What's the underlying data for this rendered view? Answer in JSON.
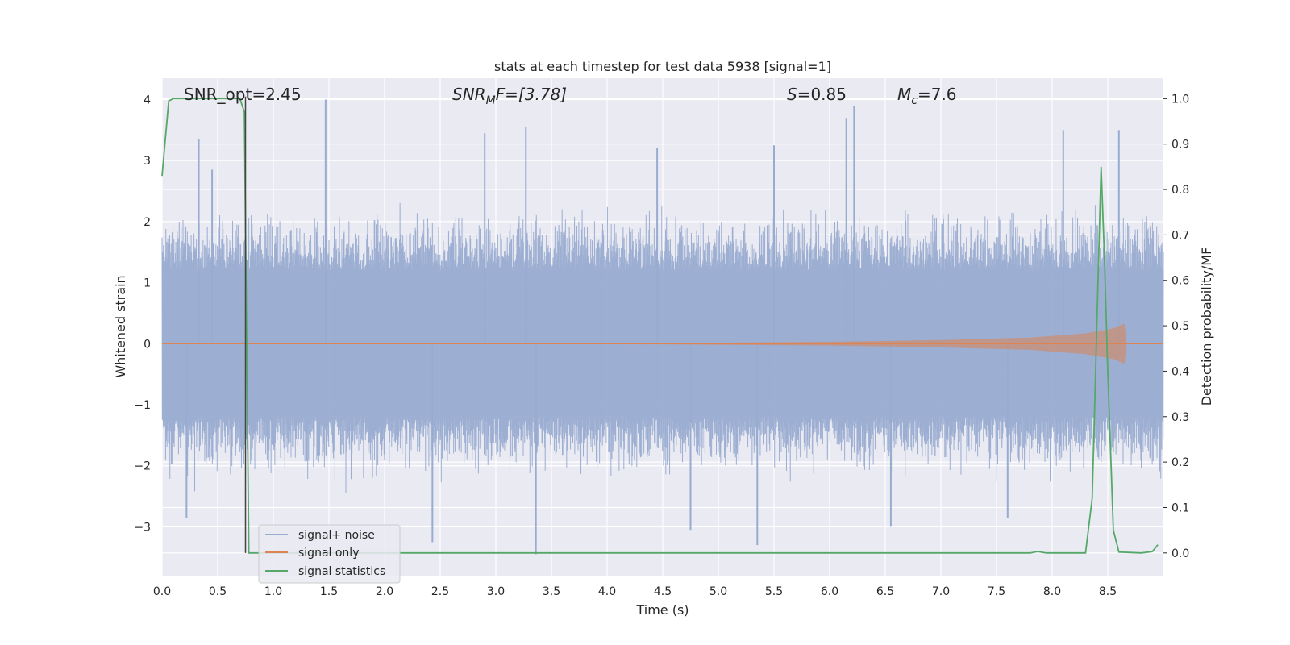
{
  "chart_data": {
    "type": "line",
    "title": "stats at each timestep for test data 5938 [signal=1]",
    "xlabel": "Time (s)",
    "ylabel_left": "Whitened strain",
    "ylabel_right": "Detection probability/MF",
    "xlim": [
      0.0,
      9.0
    ],
    "ylim_left": [
      -3.8,
      4.35
    ],
    "ylim_right": [
      -0.05,
      1.045
    ],
    "xticks": [
      0.0,
      0.5,
      1.0,
      1.5,
      2.0,
      2.5,
      3.0,
      3.5,
      4.0,
      4.5,
      5.0,
      5.5,
      6.0,
      6.5,
      7.0,
      7.5,
      8.0,
      8.5
    ],
    "xtick_labels": [
      "0.0",
      "0.5",
      "1.0",
      "1.5",
      "2.0",
      "2.5",
      "3.0",
      "3.5",
      "4.0",
      "4.5",
      "5.0",
      "5.5",
      "6.0",
      "6.5",
      "7.0",
      "7.5",
      "8.0",
      "8.5"
    ],
    "yticks_left": [
      -3,
      -2,
      -1,
      0,
      1,
      2,
      3,
      4
    ],
    "ytick_labels_left": [
      "−3",
      "−2",
      "−1",
      "0",
      "1",
      "2",
      "3",
      "4"
    ],
    "yticks_right": [
      0.0,
      0.1,
      0.2,
      0.3,
      0.4,
      0.5,
      0.6,
      0.7,
      0.8,
      0.9,
      1.0
    ],
    "ytick_labels_right": [
      "0.0",
      "0.1",
      "0.2",
      "0.3",
      "0.4",
      "0.5",
      "0.6",
      "0.7",
      "0.8",
      "0.9",
      "1.0"
    ],
    "grid": true,
    "legend_position": "lower-left",
    "annotations": {
      "snr_opt": "SNR_opt=2.45",
      "snr_mf_name": "SNR",
      "snr_mf_sub": "M",
      "snr_mf_rest": "F=[3.78]",
      "s_name": "S",
      "s_rest": "=0.85",
      "mc_name": "M",
      "mc_sub": "c",
      "mc_rest": "=7.6"
    },
    "vertical_marker_x": 0.75,
    "series": [
      {
        "name": "signal+ noise",
        "axis": "left",
        "color": "#98abd0",
        "description_values": {
          "t_start": 0.0,
          "t_end": 9.0,
          "dense_band": [
            -1.2,
            1.2
          ],
          "peaks": [
            [
              0.33,
              3.35
            ],
            [
              0.45,
              2.85
            ],
            [
              1.47,
              4.0
            ],
            [
              2.9,
              3.45
            ],
            [
              3.27,
              3.55
            ],
            [
              4.45,
              3.2
            ],
            [
              5.5,
              3.25
            ],
            [
              6.15,
              3.7
            ],
            [
              6.22,
              3.9
            ],
            [
              8.1,
              3.5
            ],
            [
              8.6,
              3.5
            ]
          ],
          "troughs": [
            [
              0.22,
              -2.85
            ],
            [
              2.43,
              -3.25
            ],
            [
              3.36,
              -3.45
            ],
            [
              4.75,
              -3.05
            ],
            [
              5.35,
              -3.3
            ],
            [
              6.55,
              -3.0
            ],
            [
              7.6,
              -2.85
            ]
          ]
        }
      },
      {
        "name": "signal only",
        "axis": "left",
        "color": "#dd8452",
        "envelope": [
          [
            0.0,
            0.0
          ],
          [
            4.5,
            0.01
          ],
          [
            6.0,
            0.03
          ],
          [
            7.0,
            0.06
          ],
          [
            7.8,
            0.1
          ],
          [
            8.3,
            0.17
          ],
          [
            8.55,
            0.25
          ],
          [
            8.65,
            0.33
          ],
          [
            8.67,
            0.0
          ]
        ]
      },
      {
        "name": "signal statistics",
        "axis": "right",
        "color": "#55a868",
        "x": [
          0.0,
          0.06,
          0.1,
          0.2,
          0.3,
          0.5,
          0.65,
          0.7,
          0.74,
          0.78,
          0.82,
          1.0,
          2.0,
          3.0,
          4.0,
          5.0,
          6.0,
          7.0,
          7.8,
          7.87,
          7.95,
          8.0,
          8.3,
          8.36,
          8.44,
          8.47,
          8.5,
          8.55,
          8.6,
          8.8,
          8.9,
          8.95
        ],
        "y": [
          0.83,
          0.995,
          1.0,
          1.0,
          1.0,
          1.0,
          1.0,
          1.0,
          0.97,
          0.0,
          0.0,
          0.0,
          0.0,
          0.0,
          0.0,
          0.0,
          0.0,
          0.0,
          0.0,
          0.003,
          0.0,
          0.0,
          0.0,
          0.12,
          0.85,
          0.65,
          0.4,
          0.05,
          0.002,
          0.0,
          0.003,
          0.018
        ]
      }
    ]
  }
}
